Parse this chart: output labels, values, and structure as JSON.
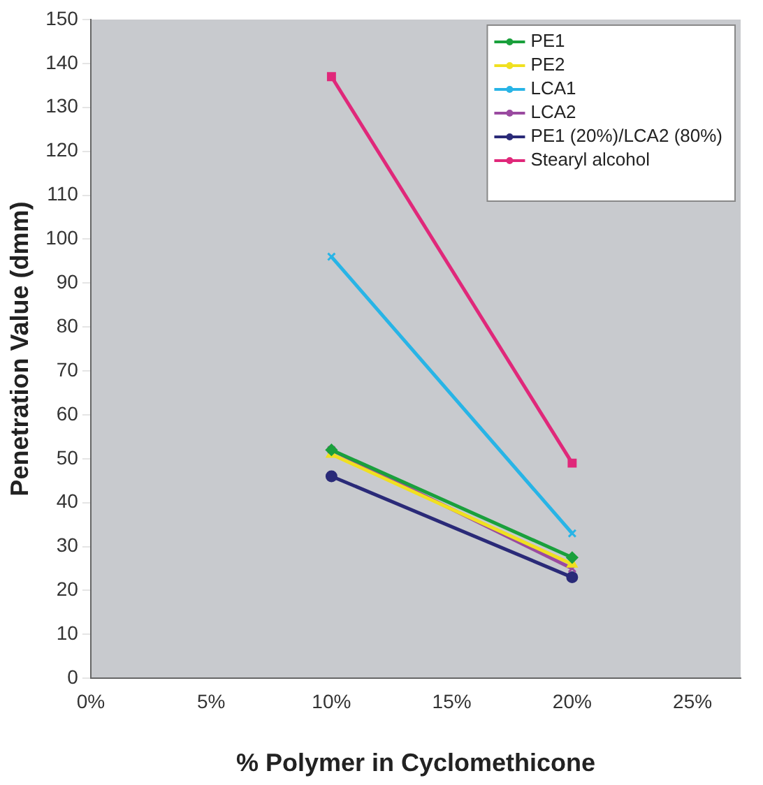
{
  "chart_data": {
    "type": "line",
    "xlabel": "% Polymer in Cyclomethicone",
    "ylabel": "Penetration Value (dmm)",
    "xlim": [
      0,
      27
    ],
    "xticks": [
      {
        "value": 0,
        "label": "0%"
      },
      {
        "value": 5,
        "label": "5%"
      },
      {
        "value": 10,
        "label": "10%"
      },
      {
        "value": 15,
        "label": "15%"
      },
      {
        "value": 20,
        "label": "20%"
      },
      {
        "value": 25,
        "label": "25%"
      }
    ],
    "ylim": [
      0,
      150
    ],
    "yticks": [
      0,
      10,
      20,
      30,
      40,
      50,
      60,
      70,
      80,
      90,
      100,
      110,
      120,
      130,
      140,
      150
    ],
    "grid": false,
    "legend": "top right",
    "x": [
      10,
      20
    ],
    "series": [
      {
        "name": "PE1",
        "color": "#1aa03c",
        "marker": "diamond",
        "values": [
          52,
          27.5
        ]
      },
      {
        "name": "PE2",
        "color": "#f0e020",
        "marker": "triangle",
        "values": [
          51,
          26
        ]
      },
      {
        "name": "LCA1",
        "color": "#28b4e6",
        "marker": "cross",
        "values": [
          96,
          33
        ]
      },
      {
        "name": "LCA2",
        "color": "#9a4aa0",
        "marker": "cross",
        "values": [
          52,
          25
        ]
      },
      {
        "name": "PE1 (20%)/LCA2 (80%)",
        "color": "#2a2a78",
        "marker": "circle",
        "values": [
          46,
          23
        ]
      },
      {
        "name": "Stearyl alcohol",
        "color": "#e0287a",
        "marker": "square",
        "values": [
          137,
          49
        ]
      }
    ]
  }
}
